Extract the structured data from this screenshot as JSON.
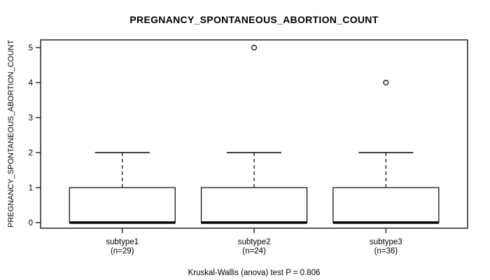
{
  "chart_data": {
    "type": "boxplot",
    "title": "PREGNANCY_SPONTANEOUS_ABORTION_COUNT",
    "ylabel": "PREGNANCY_SPONTANEOUS_ABORTION_COUNT",
    "caption": "Kruskal-Wallis (anova) test P = 0.806",
    "ylim": [
      0,
      5
    ],
    "yticks": [
      0,
      1,
      2,
      3,
      4,
      5
    ],
    "grid": false,
    "legend": "none",
    "groups": [
      {
        "label": "subtype1",
        "sublabel": "(n=29)",
        "n": 29,
        "whisker_low": 0,
        "q1": 0,
        "median": 0,
        "q3": 1,
        "whisker_high": 2,
        "outliers": []
      },
      {
        "label": "subtype2",
        "sublabel": "(n=24)",
        "n": 24,
        "whisker_low": 0,
        "q1": 0,
        "median": 0,
        "q3": 1,
        "whisker_high": 2,
        "outliers": [
          5
        ]
      },
      {
        "label": "subtype3",
        "sublabel": "(n=36)",
        "n": 36,
        "whisker_low": 0,
        "q1": 0,
        "median": 0,
        "q3": 1,
        "whisker_high": 2,
        "outliers": [
          4
        ]
      }
    ],
    "colors": {
      "line": "#000000",
      "box_fill": "#ffffff",
      "background": "#ffffff"
    }
  }
}
